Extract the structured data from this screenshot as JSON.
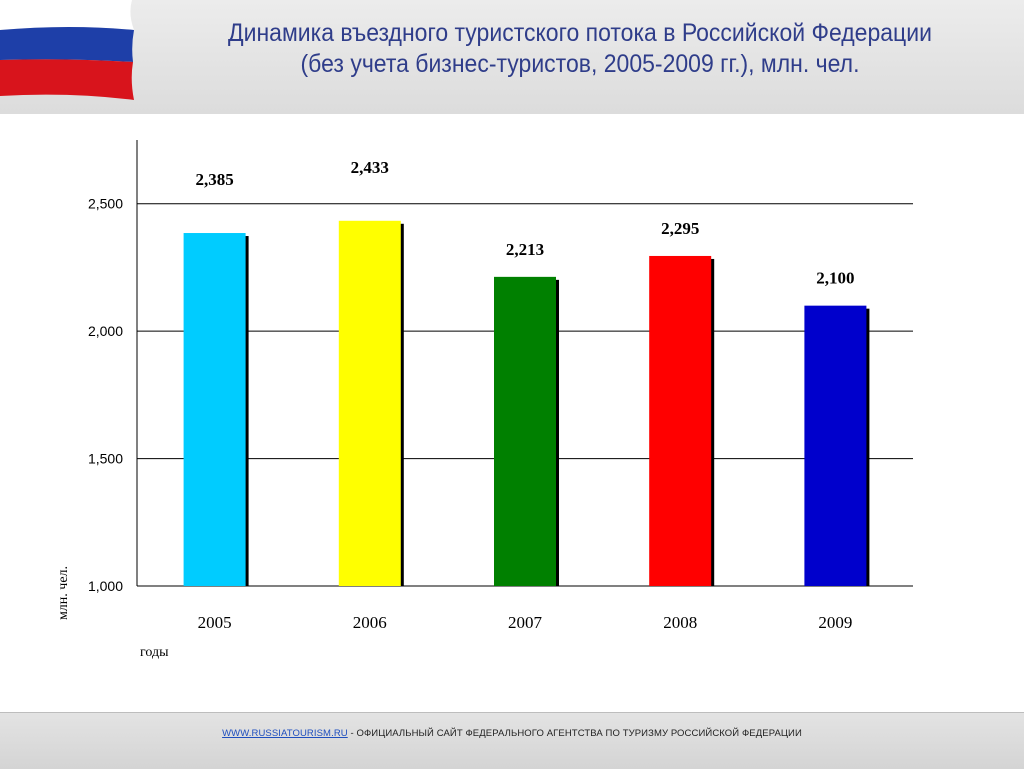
{
  "header": {
    "title_line1": "Динамика въездного туристского потока в Российской Федерации",
    "title_line2": "(без учета бизнес-туристов, 2005-2009 гг.), млн. чел.",
    "flag_colors": [
      "#ffffff",
      "#1e3fa8",
      "#d8141c"
    ]
  },
  "chart_data": {
    "type": "bar",
    "categories": [
      "2005",
      "2006",
      "2007",
      "2008",
      "2009"
    ],
    "values": [
      2.385,
      2.433,
      2.213,
      2.295,
      2.1
    ],
    "value_labels": [
      "2,385",
      "2,433",
      "2,213",
      "2,295",
      "2,100"
    ],
    "colors": [
      "#00ccff",
      "#ffff00",
      "#008000",
      "#ff0000",
      "#0000cc"
    ],
    "ylim": [
      1.0,
      2.75
    ],
    "yticks": [
      1.0,
      1.5,
      2.0,
      2.5
    ],
    "ytick_labels": [
      "1,000",
      "1,500",
      "2,000",
      "2,500"
    ],
    "xlabel": "годы",
    "ylabel": "млн. чел.",
    "grid": true
  },
  "footer": {
    "link_text": "WWW.RUSSIATOURISM.RU",
    "text": " - ОФИЦИАЛЬНЫЙ САЙТ ФЕДЕРАЛЬНОГО АГЕНТСТВА ПО ТУРИЗМУ РОССИЙСКОЙ ФЕДЕРАЦИИ"
  }
}
